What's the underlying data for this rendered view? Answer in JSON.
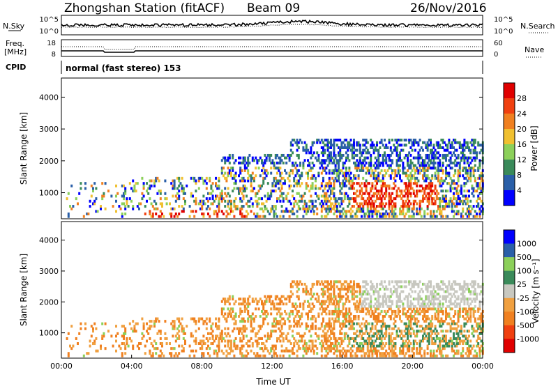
{
  "header": {
    "station": "Zhongshan Station (fitACF)",
    "beam": "Beam 09",
    "date": "26/Nov/2016"
  },
  "noise_panel": {
    "left_label": "N.Sky",
    "left_ticks": [
      "10^5",
      "10^0"
    ],
    "right_ticks": [
      "10^5",
      "10^0"
    ],
    "right_label": "N.Search"
  },
  "freq_panel": {
    "left_label_line1": "Freq.",
    "left_label_line2": "[MHz]",
    "left_ticks": [
      "18",
      "8"
    ],
    "right_ticks": [
      "60",
      "0"
    ],
    "right_label": "Nave"
  },
  "cpid": {
    "label": "CPID",
    "text": "normal (fast stereo) 153"
  },
  "colors": {
    "power_scale": [
      "#0000ff",
      "#2a5fa8",
      "#3a8a5a",
      "#8cd05a",
      "#f0c030",
      "#f08020",
      "#f04010",
      "#e00000"
    ],
    "velocity_scale": [
      "#e00000",
      "#f04010",
      "#f08020",
      "#f0a040",
      "#c8c8c0",
      "#3a8a5a",
      "#8cd05a",
      "#2a5fa8",
      "#0000ff"
    ]
  },
  "chart_data": [
    {
      "type": "heatmap",
      "panel": "power",
      "ylabel": "Slant Range [km]",
      "ylim": [
        180,
        4600
      ],
      "yticks": [
        "1000",
        "2000",
        "3000",
        "4000"
      ],
      "xlim_hours": [
        0,
        24
      ],
      "colorbar_label": "Power [dB]",
      "colorbar_ticks": [
        "4",
        "8",
        "12",
        "16",
        "20",
        "24",
        "28"
      ],
      "color_range": [
        0,
        30
      ]
    },
    {
      "type": "heatmap",
      "panel": "velocity",
      "ylabel": "Slant Range [km]",
      "ylim": [
        180,
        4600
      ],
      "yticks": [
        "1000",
        "2000",
        "3000",
        "4000"
      ],
      "xlim_hours": [
        0,
        24
      ],
      "xticks": [
        "00:00",
        "04:00",
        "08:00",
        "12:00",
        "16:00",
        "20:00",
        "00:00"
      ],
      "xlabel": "Time UT",
      "colorbar_label": "Velocity [m s⁻¹]",
      "colorbar_ticks": [
        "1000",
        "500",
        "100",
        "25",
        "-25",
        "-100",
        "-500",
        "-1000"
      ]
    }
  ]
}
